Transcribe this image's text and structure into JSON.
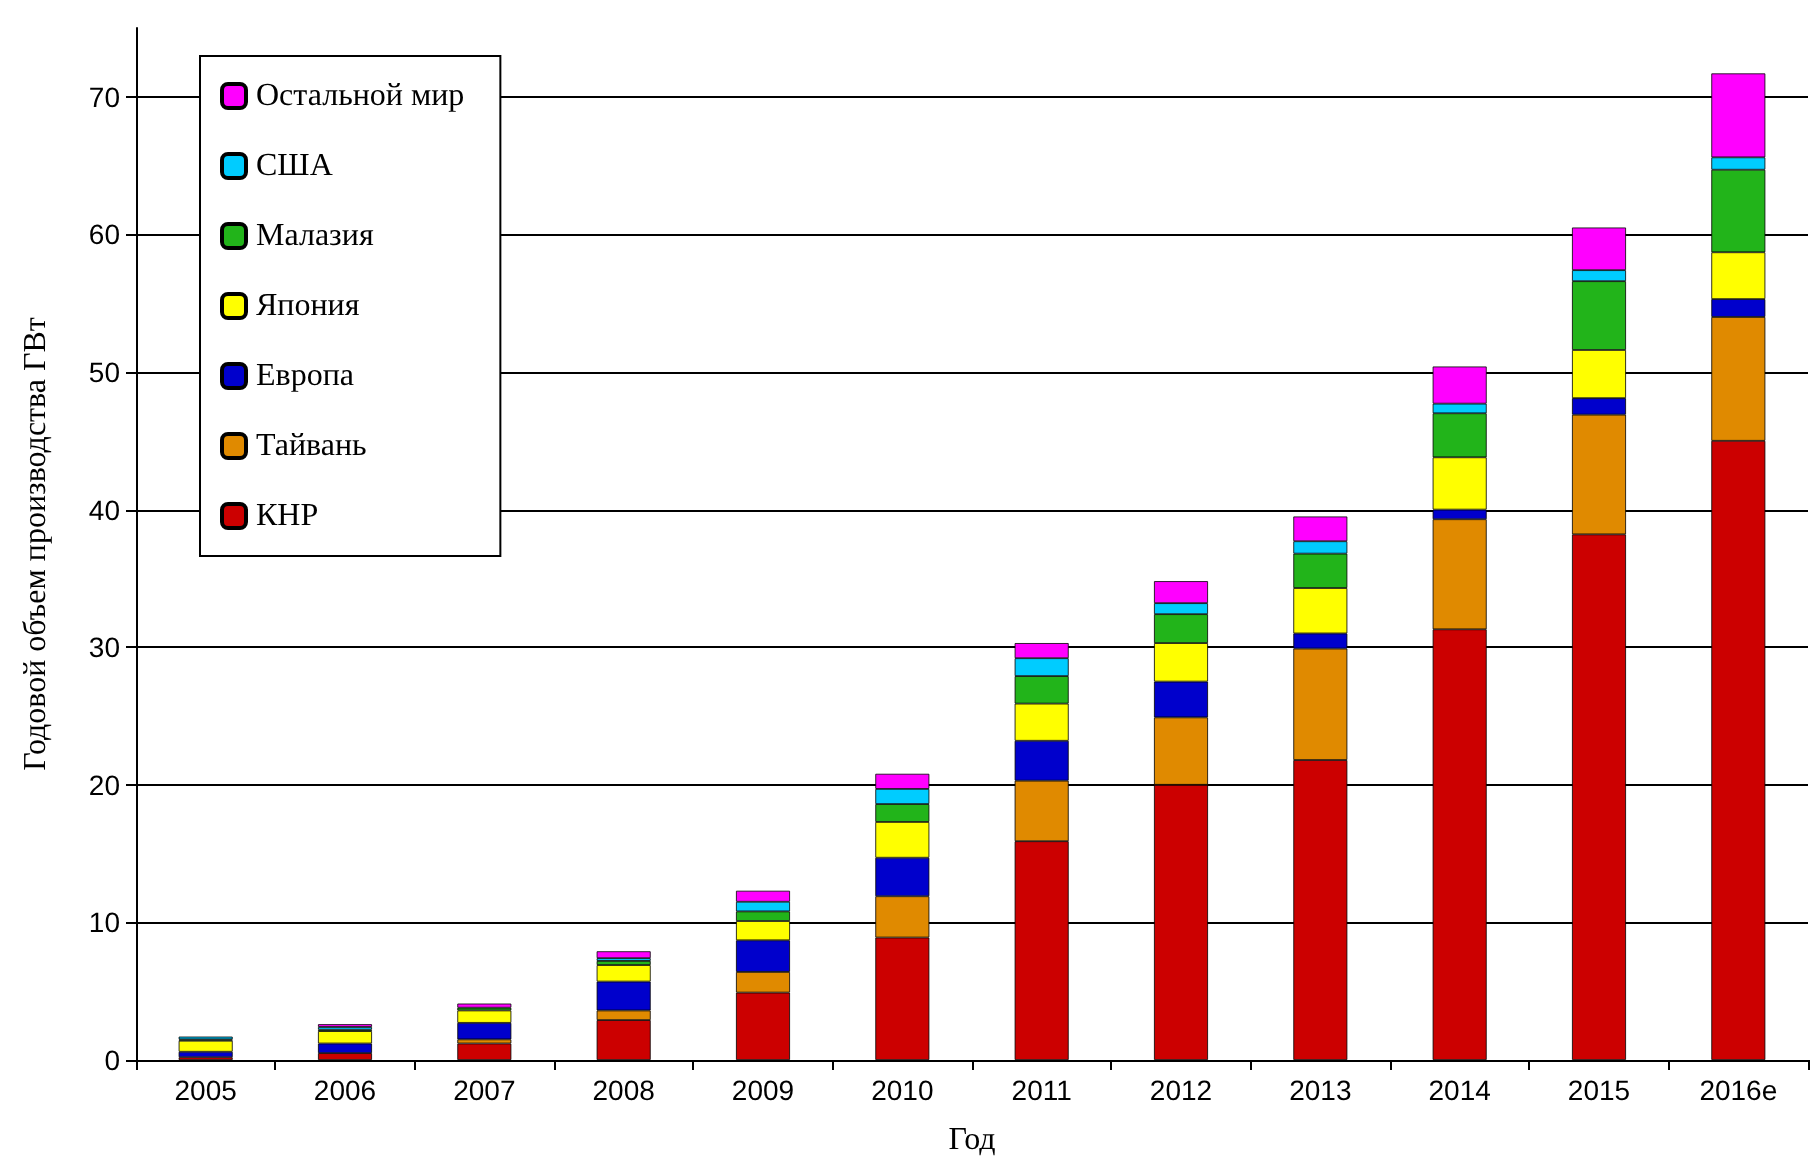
{
  "chart_data": {
    "type": "bar",
    "stacked": true,
    "xlabel": "Год",
    "ylabel": "Годовой объем производства ГВт",
    "categories": [
      "2005",
      "2006",
      "2007",
      "2008",
      "2009",
      "2010",
      "2011",
      "2012",
      "2013",
      "2014",
      "2015",
      "2016e"
    ],
    "series": [
      {
        "name": "КНР",
        "color": "#cc0000",
        "values": [
          0.2,
          0.5,
          1.2,
          2.9,
          4.9,
          8.9,
          15.9,
          20.0,
          21.8,
          31.3,
          38.2,
          45.0
        ]
      },
      {
        "name": "Тайвань",
        "color": "#e08a00",
        "values": [
          null,
          null,
          0.3,
          0.7,
          1.5,
          3.0,
          4.4,
          4.9,
          8.1,
          8.0,
          8.7,
          9.0
        ]
      },
      {
        "name": "Европа",
        "color": "#0000cc",
        "values": [
          0.4,
          0.7,
          1.2,
          2.1,
          2.3,
          2.8,
          2.9,
          2.6,
          1.1,
          0.7,
          1.2,
          1.3
        ]
      },
      {
        "name": "Япония",
        "color": "#ffff00",
        "values": [
          0.8,
          0.9,
          0.9,
          1.2,
          1.4,
          2.6,
          2.7,
          2.8,
          3.3,
          3.8,
          3.5,
          3.4
        ]
      },
      {
        "name": "Малазия",
        "color": "#22b41a",
        "values": [
          0.1,
          0.1,
          0.2,
          0.3,
          0.7,
          1.3,
          2.0,
          2.1,
          2.5,
          3.2,
          5.0,
          6.0
        ]
      },
      {
        "name": "США",
        "color": "#00ccff",
        "values": [
          0.2,
          0.2,
          null,
          0.2,
          0.7,
          1.1,
          1.3,
          0.8,
          0.9,
          0.7,
          0.8,
          0.9
        ]
      },
      {
        "name": "Остальной мир",
        "color": "#ff00ff",
        "values": [
          null,
          0.2,
          0.3,
          0.5,
          0.8,
          1.1,
          1.1,
          1.6,
          1.8,
          2.7,
          3.1,
          6.1
        ]
      }
    ],
    "ylim": [
      0,
      75
    ],
    "yticks": [
      0,
      10,
      20,
      30,
      40,
      50,
      60,
      70
    ],
    "grid": "y",
    "legend": "top left"
  }
}
